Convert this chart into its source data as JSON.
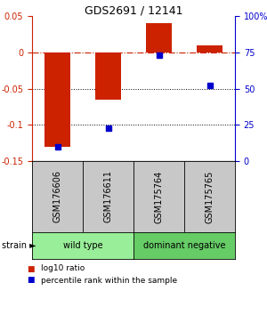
{
  "title": "GDS2691 / 12141",
  "samples": [
    "GSM176606",
    "GSM176611",
    "GSM175764",
    "GSM175765"
  ],
  "log10_ratio": [
    -0.13,
    -0.065,
    0.04,
    0.01
  ],
  "percentile_rank": [
    10,
    23,
    73,
    52
  ],
  "ylim_left": [
    -0.15,
    0.05
  ],
  "ylim_right": [
    0,
    100
  ],
  "yticks_left": [
    -0.15,
    -0.1,
    -0.05,
    0.0,
    0.05
  ],
  "yticks_right": [
    0,
    25,
    50,
    75,
    100
  ],
  "groups": [
    {
      "label": "wild type",
      "color": "#99EE99",
      "start": 0,
      "end": 2
    },
    {
      "label": "dominant negative",
      "color": "#66CC66",
      "start": 2,
      "end": 4
    }
  ],
  "bar_color": "#CC2200",
  "dot_color": "#0000CC",
  "dashed_line_color": "#CC2200",
  "dotted_line_color": "#000000",
  "bar_width": 0.5,
  "sample_box_color": "#C8C8C8",
  "legend_items": [
    {
      "label": "log10 ratio",
      "color": "#CC2200"
    },
    {
      "label": "percentile rank within the sample",
      "color": "#0000CC"
    }
  ],
  "title_fontsize": 9,
  "tick_fontsize": 7,
  "label_fontsize": 7
}
